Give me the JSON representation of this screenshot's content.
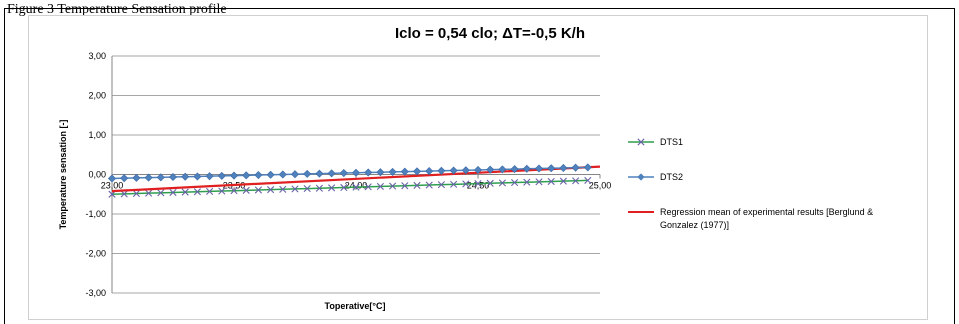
{
  "document": {
    "top_text": "Figure 3 Temperature Sensation profile"
  },
  "chart_data": {
    "type": "line",
    "title": "Iclo = 0,54 clo; ΔT=-0,5 K/h",
    "xlabel": "Toperative[°C]",
    "ylabel": "Temperature sensation [-]",
    "xlim": [
      23.0,
      25.0
    ],
    "ylim": [
      -3.0,
      3.0
    ],
    "x_ticks": [
      "23,00",
      "23,50",
      "24,00",
      "24,50",
      "25,00"
    ],
    "y_ticks": [
      "3,00",
      "2,00",
      "1,00",
      "0,00",
      "-1,00",
      "-2,00",
      "-3,00"
    ],
    "grid": "horizontal",
    "legend_position": "right",
    "series": [
      {
        "name": "DTS1",
        "color": "#4bacc6",
        "line_color": "#2e9e4f",
        "marker": "x",
        "x_start": 23.0,
        "x_end": 24.95,
        "y_start": -0.5,
        "y_end": -0.15,
        "points": 40
      },
      {
        "name": "DTS2",
        "color": "#4f81bd",
        "marker": "diamond",
        "x_start": 23.0,
        "x_end": 24.95,
        "y_start": -0.1,
        "y_end": 0.18,
        "points": 40
      },
      {
        "name": "Regression mean of experimental results [Berglund & Gonzalez (1977)]",
        "legend_lines": [
          "Regression mean of experimental results [Berglund &",
          "Gonzalez (1977)]"
        ],
        "color": "#e02020",
        "marker": "none",
        "x": [
          23.0,
          25.0
        ],
        "y": [
          -0.42,
          0.2
        ]
      }
    ]
  }
}
